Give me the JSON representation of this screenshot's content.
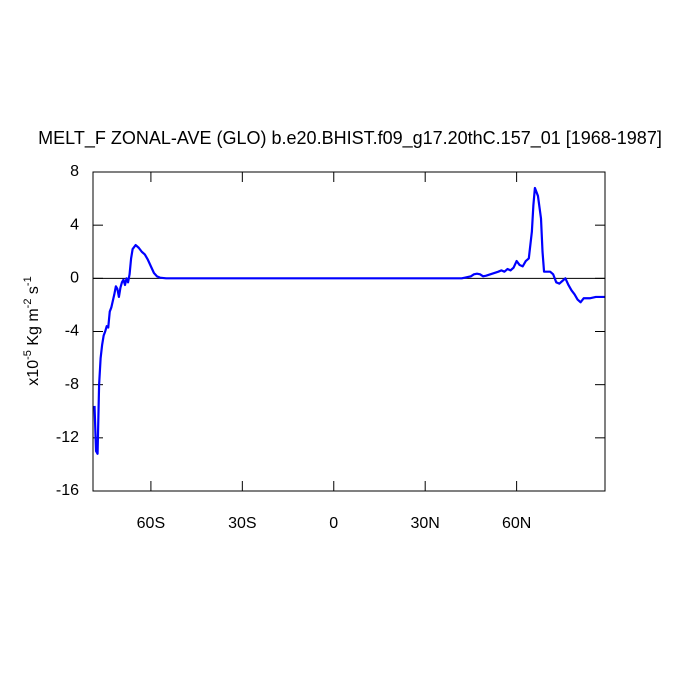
{
  "chart_data": {
    "type": "line",
    "title": "MELT_F ZONAL-AVE (GLO) b.e20.BHIST.f09_g17.20thC.157_01 [1968-1987]",
    "ylabel": [
      "x10",
      "-5",
      " Kg m",
      "-2",
      " s",
      "-1"
    ],
    "x": [
      -78.5,
      -78,
      -77.5,
      -77,
      -76.5,
      -76,
      -75.5,
      -75,
      -74.5,
      -74,
      -73.5,
      -73,
      -72,
      -71.5,
      -71,
      -70.5,
      -70,
      -69.5,
      -69,
      -68.5,
      -68,
      -67.5,
      -67,
      -66.5,
      -66,
      -65,
      -64,
      -63,
      -62,
      -61,
      -60,
      -59,
      -58,
      -57,
      -55,
      0,
      42,
      43,
      45,
      46,
      47,
      48,
      49,
      50,
      52,
      54,
      55,
      56,
      57,
      58,
      59,
      60,
      61,
      62,
      63,
      64,
      65,
      65.5,
      66,
      67,
      68,
      68.5,
      69,
      70,
      71,
      72,
      73,
      74,
      75,
      76,
      77,
      78,
      79,
      80,
      81,
      82,
      83,
      84,
      86,
      89
    ],
    "series": [
      {
        "color": "#0000ff",
        "values": [
          -9.6,
          -13,
          -13.2,
          -8,
          -6,
          -5,
          -4.3,
          -4,
          -3.6,
          -3.7,
          -2.5,
          -2.2,
          -1.2,
          -0.6,
          -0.8,
          -1.4,
          -0.7,
          -0.3,
          -0.1,
          -0.5,
          0,
          -0.3,
          0.3,
          1.5,
          2.2,
          2.5,
          2.3,
          2.0,
          1.8,
          1.4,
          0.9,
          0.4,
          0.15,
          0.05,
          0,
          0,
          0,
          0.05,
          0.15,
          0.3,
          0.35,
          0.3,
          0.15,
          0.2,
          0.35,
          0.5,
          0.6,
          0.5,
          0.7,
          0.6,
          0.8,
          1.3,
          1.0,
          0.9,
          1.3,
          1.5,
          3.5,
          5.5,
          6.8,
          6.2,
          4.5,
          2.0,
          0.5,
          0.5,
          0.5,
          0.3,
          -0.3,
          -0.4,
          -0.2,
          0.0,
          -0.5,
          -0.9,
          -1.2,
          -1.6,
          -1.8,
          -1.5,
          -1.5,
          -1.5,
          -1.4,
          -1.4
        ]
      }
    ],
    "xlim": [
      -79,
      89
    ],
    "xticks": [
      {
        "value": -60,
        "label": "60S"
      },
      {
        "value": -30,
        "label": "30S"
      },
      {
        "value": 0,
        "label": "0"
      },
      {
        "value": 30,
        "label": "30N"
      },
      {
        "value": 60,
        "label": "60N"
      }
    ],
    "ylim": [
      -16,
      8
    ],
    "yticks": [
      -16,
      -12,
      -8,
      -4,
      0,
      4,
      8
    ],
    "zero_line": true
  }
}
